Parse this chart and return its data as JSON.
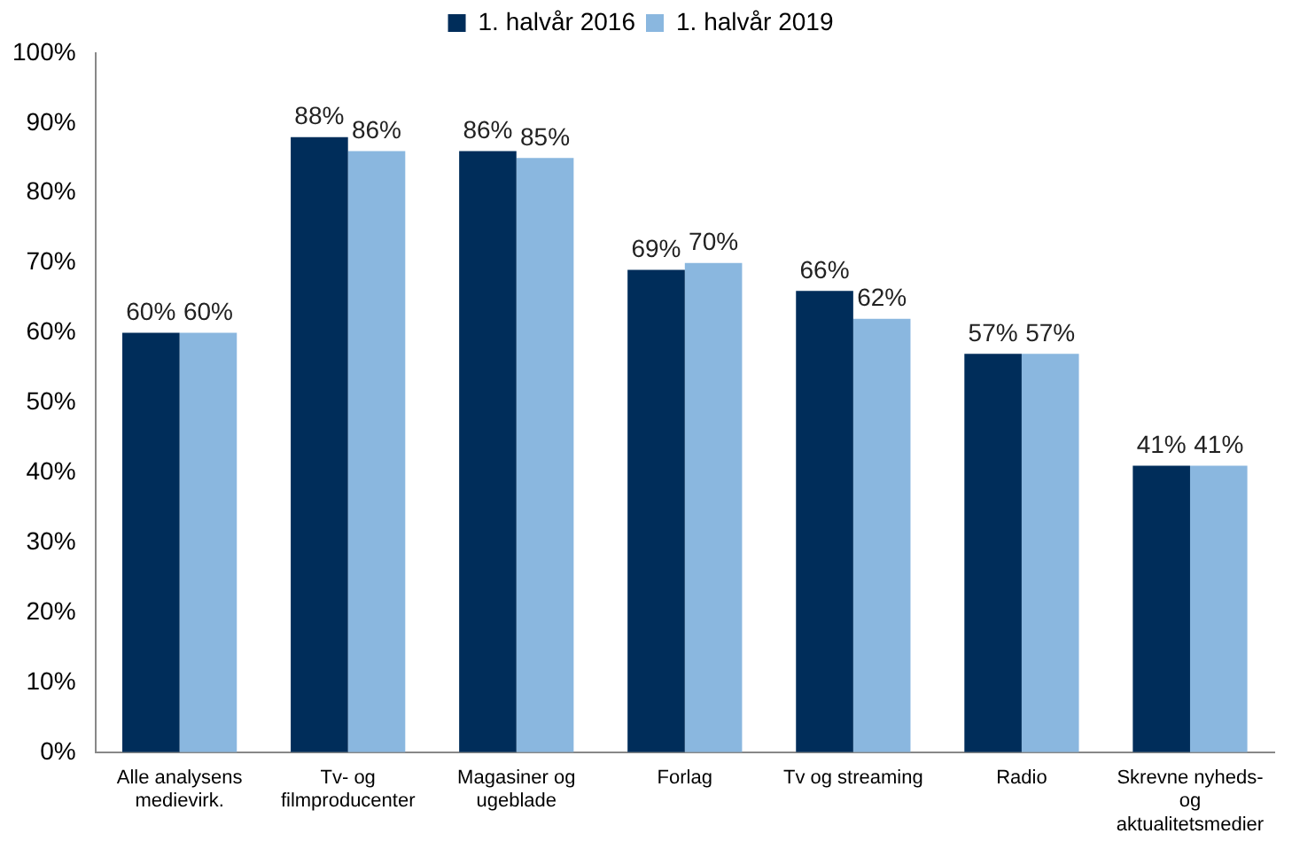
{
  "chart_data": {
    "type": "bar",
    "categories": [
      "Alle analysens medievirk.",
      "Tv- og filmproducenter",
      "Magasiner og ugeblade",
      "Forlag",
      "Tv og streaming",
      "Radio",
      "Skrevne nyheds- og aktualitetsmedier"
    ],
    "series": [
      {
        "name": "1. halvår 2016",
        "color": "#002d5a",
        "values": [
          60,
          88,
          86,
          69,
          66,
          57,
          41
        ],
        "value_labels": [
          "60%",
          "88%",
          "86%",
          "69%",
          "66%",
          "57%",
          "41%"
        ]
      },
      {
        "name": "1. halvår 2019",
        "color": "#8ab7df",
        "values": [
          60,
          86,
          85,
          70,
          62,
          57,
          41
        ],
        "value_labels": [
          "60%",
          "86%",
          "85%",
          "70%",
          "62%",
          "57%",
          "41%"
        ]
      }
    ],
    "ylim": [
      0,
      100
    ],
    "yticks": [
      {
        "value": 0,
        "label": "0%"
      },
      {
        "value": 10,
        "label": "10%"
      },
      {
        "value": 20,
        "label": "20%"
      },
      {
        "value": 30,
        "label": "30%"
      },
      {
        "value": 40,
        "label": "40%"
      },
      {
        "value": 50,
        "label": "50%"
      },
      {
        "value": 60,
        "label": "60%"
      },
      {
        "value": 70,
        "label": "70%"
      },
      {
        "value": 80,
        "label": "80%"
      },
      {
        "value": 90,
        "label": "90%"
      },
      {
        "value": 100,
        "label": "100%"
      }
    ],
    "grid": false,
    "legend": "top"
  }
}
